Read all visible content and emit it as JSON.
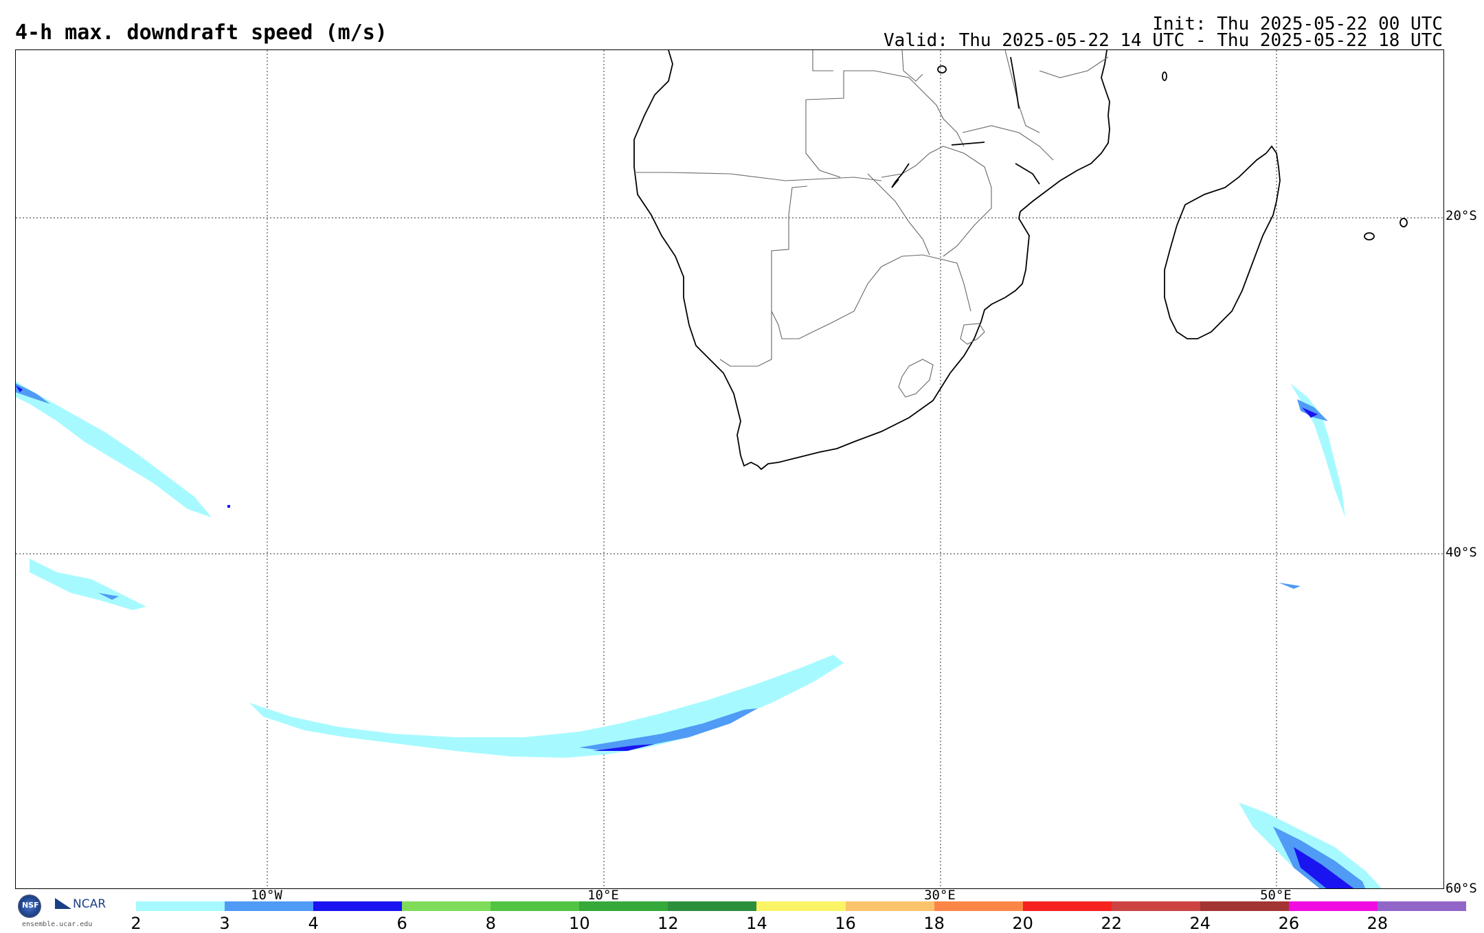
{
  "header": {
    "title": "4-h max. downdraft speed (m/s)",
    "init": "Init: Thu 2025-05-22 00 UTC",
    "valid": "Valid: Thu 2025-05-22 14 UTC - Thu 2025-05-22 18 UTC"
  },
  "map": {
    "projection": "cylindrical",
    "lon_range": [
      -25,
      53
    ],
    "lat_range": [
      -60,
      -10
    ],
    "grid_lines": "dotted",
    "latitude_labels": [
      "20°S",
      "40°S",
      "60°S"
    ],
    "longitude_labels": [
      "10°W",
      "10°E",
      "30°E",
      "50°E"
    ],
    "features": [
      "coastlines",
      "country borders",
      "lakes"
    ]
  },
  "colorbar": {
    "ticks": [
      "2",
      "3",
      "4",
      "6",
      "8",
      "10",
      "12",
      "14",
      "16",
      "18",
      "20",
      "22",
      "24",
      "26",
      "28"
    ],
    "colors": [
      "#a6faff",
      "#4f9bf5",
      "#1a14f0",
      "#7fdc5a",
      "#52c443",
      "#35a93a",
      "#2c8f3c",
      "#fbf565",
      "#fcc36d",
      "#fc8648",
      "#f52220",
      "#cc4342",
      "#a23433",
      "#f10ce2",
      "#9166c8"
    ]
  },
  "logo": {
    "org": "NCAR",
    "badge": "NSF",
    "url": "ensemble.ucar.edu"
  }
}
